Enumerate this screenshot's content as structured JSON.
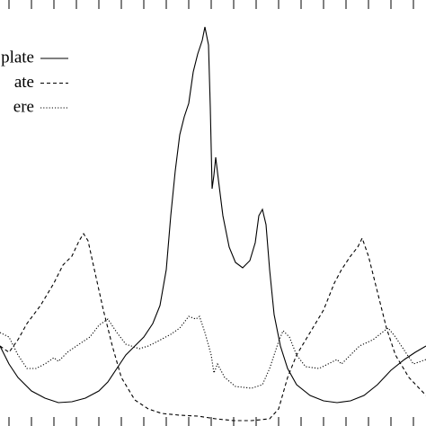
{
  "chart_data": {
    "type": "line",
    "series": [
      {
        "name": "plate",
        "color": "#000000",
        "style": "solid",
        "x": [
          0,
          10,
          20,
          35,
          50,
          65,
          80,
          95,
          110,
          120,
          130,
          140,
          150,
          160,
          170,
          178,
          185,
          190,
          195,
          200,
          205,
          210,
          215,
          220,
          225,
          228,
          232,
          234,
          236,
          238,
          240,
          243,
          248,
          255,
          262,
          270,
          278,
          284,
          288,
          292,
          296,
          300,
          305,
          312,
          320,
          330,
          345,
          360,
          375,
          390,
          405,
          420,
          435,
          450,
          462,
          474
        ],
        "values": [
          89,
          69,
          54,
          39,
          31,
          26,
          27,
          31,
          39,
          49,
          64,
          79,
          89,
          99,
          114,
          134,
          174,
          234,
          284,
          324,
          344,
          359,
          394,
          414,
          429,
          444,
          424,
          354,
          264,
          279,
          299,
          274,
          234,
          199,
          182,
          176,
          184,
          204,
          234,
          241,
          224,
          174,
          124,
          89,
          64,
          46,
          34,
          28,
          26,
          28,
          34,
          46,
          62,
          74,
          82,
          89
        ]
      },
      {
        "name": "ate",
        "color": "#000000",
        "style": "dashed",
        "x": [
          0,
          10,
          20,
          30,
          45,
          60,
          70,
          80,
          88,
          93,
          98,
          105,
          115,
          125,
          135,
          150,
          165,
          180,
          200,
          220,
          240,
          260,
          280,
          300,
          310,
          320,
          330,
          345,
          360,
          372,
          380,
          390,
          398,
          403,
          410,
          420,
          430,
          440,
          455,
          474
        ],
        "values": [
          89,
          82,
          96,
          114,
          134,
          159,
          179,
          189,
          206,
          214,
          206,
          174,
          129,
          89,
          54,
          29,
          19,
          14,
          12,
          11,
          8,
          6,
          6,
          8,
          19,
          54,
          79,
          104,
          129,
          159,
          174,
          189,
          199,
          209,
          189,
          149,
          109,
          79,
          54,
          34
        ]
      },
      {
        "name": "ere",
        "color": "#000000",
        "style": "dotted",
        "x": [
          0,
          10,
          20,
          30,
          40,
          50,
          60,
          65,
          75,
          85,
          100,
          110,
          120,
          130,
          140,
          155,
          165,
          175,
          190,
          200,
          210,
          218,
          222,
          228,
          235,
          238,
          242,
          250,
          262,
          280,
          292,
          300,
          310,
          315,
          322,
          330,
          340,
          355,
          365,
          375,
          380,
          390,
          400,
          415,
          425,
          432,
          440,
          450,
          460,
          474
        ],
        "values": [
          104,
          99,
          79,
          64,
          64,
          69,
          76,
          72,
          82,
          89,
          99,
          112,
          119,
          104,
          91,
          86,
          89,
          94,
          102,
          109,
          122,
          119,
          122,
          104,
          79,
          59,
          69,
          54,
          44,
          42,
          46,
          64,
          94,
          106,
          99,
          79,
          66,
          64,
          69,
          74,
          69,
          79,
          89,
          96,
          104,
          109,
          99,
          84,
          69,
          74
        ]
      }
    ],
    "xlim": [
      0,
      474
    ],
    "ylim": [
      0,
      474
    ],
    "xticks": [
      10,
      35,
      60,
      85,
      110,
      135,
      160,
      185,
      210,
      235,
      260,
      285,
      310,
      335,
      360,
      385,
      410,
      435,
      460
    ]
  }
}
